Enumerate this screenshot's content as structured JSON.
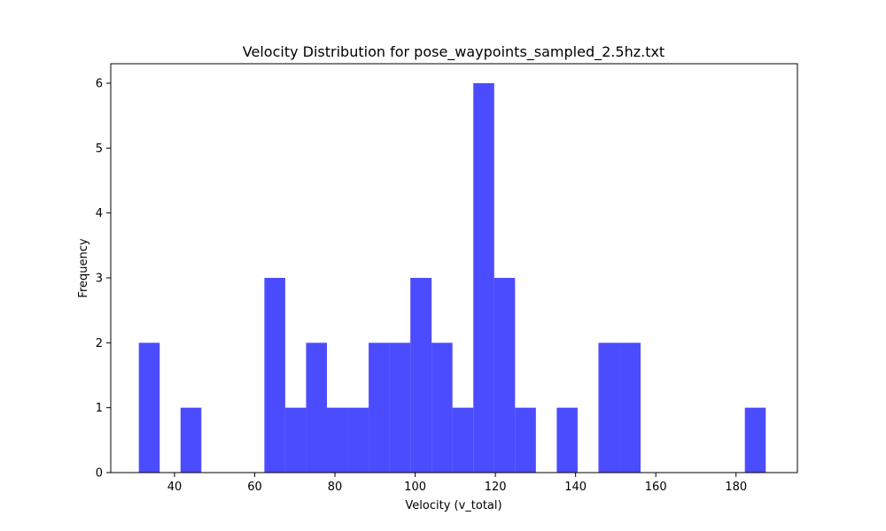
{
  "chart_data": {
    "type": "bar",
    "title": "Velocity Distribution for pose_waypoints_sampled_2.5hz.txt",
    "xlabel": "Velocity (v_total)",
    "ylabel": "Frequency",
    "xlim": [
      24.1,
      195.3
    ],
    "ylim": [
      0,
      6.3
    ],
    "xticks": [
      40,
      60,
      80,
      100,
      120,
      140,
      160,
      180
    ],
    "yticks": [
      0,
      1,
      2,
      3,
      4,
      5,
      6
    ],
    "grid": false,
    "legend": "none",
    "bar_color": "#0000ff",
    "bar_opacity": 0.7,
    "bins": [
      {
        "x0": 31.1,
        "x1": 36.3,
        "count": 2
      },
      {
        "x0": 36.3,
        "x1": 41.5,
        "count": 0
      },
      {
        "x0": 41.5,
        "x1": 46.7,
        "count": 1
      },
      {
        "x0": 46.7,
        "x1": 51.9,
        "count": 0
      },
      {
        "x0": 51.9,
        "x1": 57.2,
        "count": 0
      },
      {
        "x0": 57.2,
        "x1": 62.4,
        "count": 0
      },
      {
        "x0": 62.4,
        "x1": 67.6,
        "count": 3
      },
      {
        "x0": 67.6,
        "x1": 72.8,
        "count": 1
      },
      {
        "x0": 72.8,
        "x1": 78.0,
        "count": 2
      },
      {
        "x0": 78.0,
        "x1": 83.2,
        "count": 1
      },
      {
        "x0": 83.2,
        "x1": 88.4,
        "count": 1
      },
      {
        "x0": 88.4,
        "x1": 93.6,
        "count": 2
      },
      {
        "x0": 93.6,
        "x1": 98.8,
        "count": 2
      },
      {
        "x0": 98.8,
        "x1": 104.1,
        "count": 3
      },
      {
        "x0": 104.1,
        "x1": 109.3,
        "count": 2
      },
      {
        "x0": 109.3,
        "x1": 114.5,
        "count": 1
      },
      {
        "x0": 114.5,
        "x1": 119.7,
        "count": 6
      },
      {
        "x0": 119.7,
        "x1": 124.9,
        "count": 3
      },
      {
        "x0": 124.9,
        "x1": 130.1,
        "count": 1
      },
      {
        "x0": 130.1,
        "x1": 135.3,
        "count": 0
      },
      {
        "x0": 135.3,
        "x1": 140.5,
        "count": 1
      },
      {
        "x0": 140.5,
        "x1": 145.7,
        "count": 0
      },
      {
        "x0": 145.7,
        "x1": 151.0,
        "count": 2
      },
      {
        "x0": 151.0,
        "x1": 156.2,
        "count": 2
      },
      {
        "x0": 156.2,
        "x1": 161.4,
        "count": 0
      },
      {
        "x0": 161.4,
        "x1": 166.6,
        "count": 0
      },
      {
        "x0": 166.6,
        "x1": 171.8,
        "count": 0
      },
      {
        "x0": 171.8,
        "x1": 177.0,
        "count": 0
      },
      {
        "x0": 177.0,
        "x1": 182.2,
        "count": 0
      },
      {
        "x0": 182.2,
        "x1": 187.4,
        "count": 1
      }
    ]
  }
}
